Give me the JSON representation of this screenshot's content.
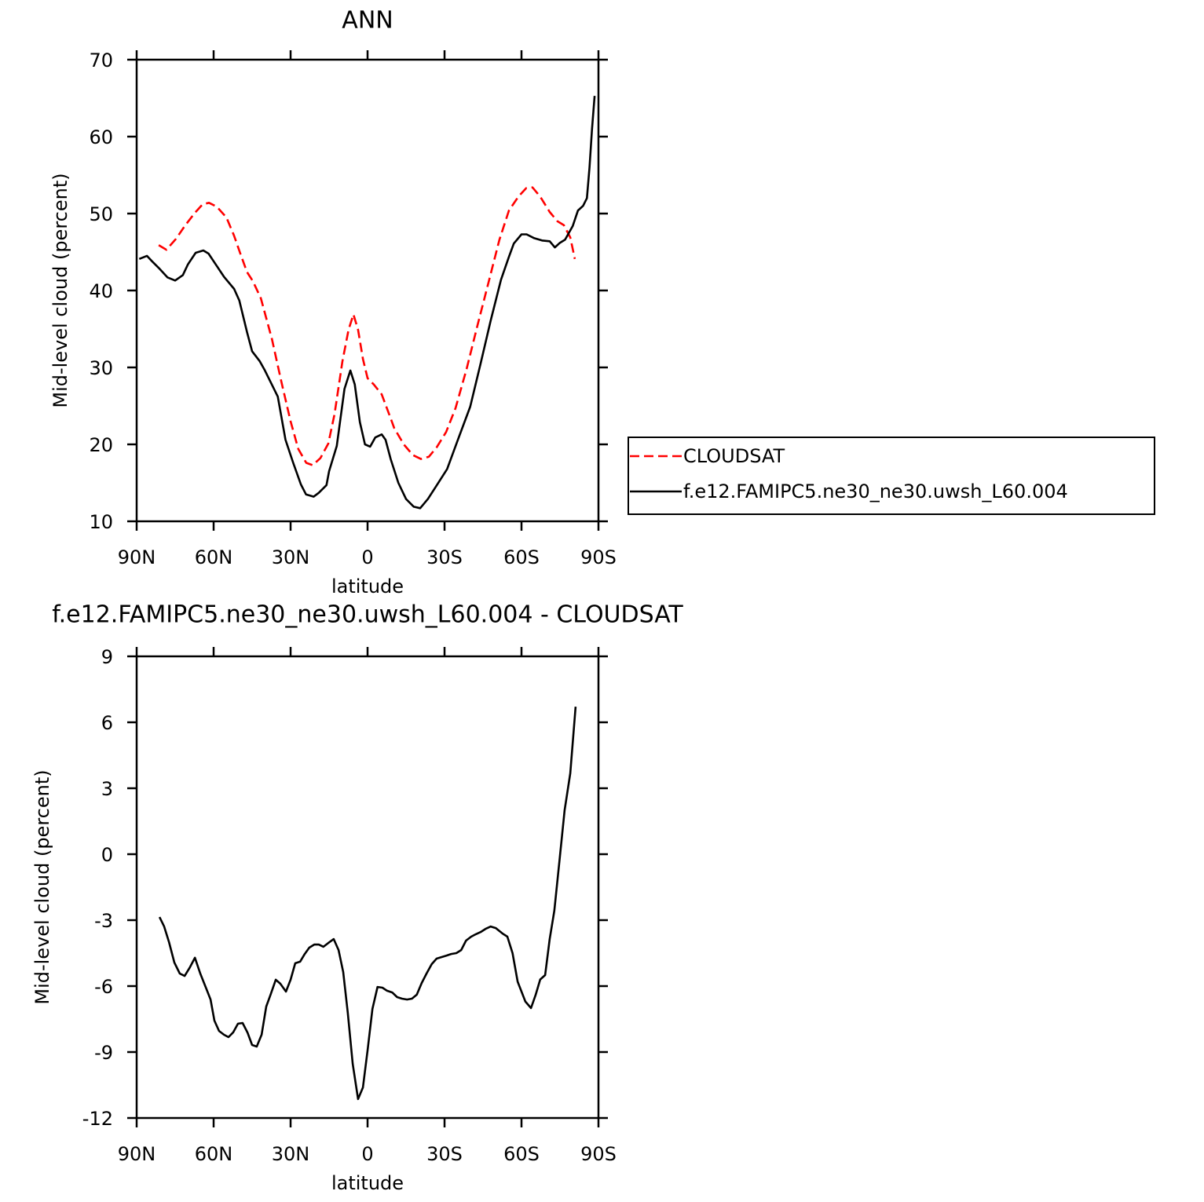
{
  "chart_data": [
    {
      "type": "line",
      "title": "ANN",
      "xlabel": "latitude",
      "ylabel": "Mid-level cloud (percent)",
      "xlim": [
        90,
        -90
      ],
      "xticks": [
        {
          "value": 90,
          "label": "90N"
        },
        {
          "value": 60,
          "label": "60N"
        },
        {
          "value": 30,
          "label": "30N"
        },
        0,
        {
          "value": -30,
          "label": "30S"
        },
        {
          "value": -60,
          "label": "60S"
        },
        {
          "value": -90,
          "label": "90S"
        }
      ],
      "ylim": [
        10,
        70
      ],
      "yticks": [
        10,
        20,
        30,
        40,
        50,
        60,
        70
      ],
      "legend": "outside right",
      "series": [
        {
          "name": "CLOUDSAT",
          "color": "#ff0000",
          "style": "dashed",
          "x": [
            81.4,
            78.4,
            74.7,
            71,
            67.3,
            64.3,
            61.8,
            58.8,
            55,
            52,
            49.6,
            47,
            44.7,
            41.6,
            37.3,
            33.7,
            30,
            27,
            23.9,
            21.4,
            18.4,
            15.3,
            12.9,
            9.8,
            7.4,
            5.5,
            3.7,
            1.8,
            0,
            -2.4,
            -5.5,
            -8,
            -10.4,
            -14.1,
            -17.7,
            -20.8,
            -23.9,
            -26.9,
            -30.6,
            -34.3,
            -38.6,
            -42.8,
            -47.1,
            -51.4,
            -55.1,
            -58.8,
            -61.8,
            -64.3,
            -67.3,
            -71,
            -74,
            -76.5,
            -79,
            -80.8
          ],
          "values": [
            45.9,
            45.3,
            46.7,
            48.5,
            50.1,
            51.2,
            51.4,
            50.9,
            49.5,
            47.1,
            44.8,
            42.4,
            41.2,
            39.0,
            33.7,
            28.3,
            23.0,
            19.4,
            17.6,
            17.3,
            18.2,
            20.1,
            23.9,
            30.8,
            34.9,
            36.9,
            34.9,
            31.1,
            28.6,
            27.8,
            26.5,
            24.3,
            22.1,
            20.0,
            18.6,
            18.1,
            18.4,
            19.6,
            21.6,
            24.7,
            29.8,
            35.4,
            41.0,
            46.6,
            50.4,
            52.2,
            53.3,
            53.4,
            52.2,
            50.2,
            49.0,
            48.5,
            46.9,
            44.1
          ]
        },
        {
          "name": "f.e12.FAMIPC5.ne30_ne30.uwsh_L60.004",
          "color": "#000000",
          "style": "solid",
          "x": [
            89,
            86,
            84,
            81,
            78,
            75,
            72,
            70,
            67,
            64,
            62,
            59,
            56,
            52,
            50,
            47,
            45,
            42,
            40,
            35,
            32,
            29,
            26,
            24,
            21,
            19,
            16,
            15,
            12,
            9,
            6.7,
            5,
            3,
            1,
            -1,
            -3,
            -5.5,
            -7,
            -9,
            -12,
            -15,
            -18,
            -20.5,
            -23.5,
            -27,
            -31,
            -35,
            -40,
            -44,
            -48,
            -52,
            -55,
            -57,
            -60,
            -62,
            -65,
            -68,
            -71,
            -73,
            -75,
            -77,
            -80,
            -82,
            -84,
            -85.5,
            -86.5,
            -87.5,
            -88.5
          ],
          "values": [
            44.1,
            44.5,
            43.8,
            42.8,
            41.7,
            41.3,
            42.0,
            43.4,
            44.9,
            45.2,
            44.8,
            43.3,
            41.8,
            40.2,
            38.7,
            34.6,
            32.1,
            30.8,
            29.6,
            26.2,
            20.6,
            17.6,
            14.8,
            13.5,
            13.2,
            13.7,
            14.7,
            16.5,
            19.8,
            27.2,
            29.6,
            27.8,
            22.9,
            20.0,
            19.7,
            20.9,
            21.3,
            20.6,
            18.1,
            15.0,
            12.9,
            11.9,
            11.7,
            12.9,
            14.7,
            16.8,
            20.4,
            24.9,
            30.4,
            36.1,
            41.4,
            44.3,
            46.1,
            47.3,
            47.3,
            46.8,
            46.5,
            46.4,
            45.6,
            46.2,
            46.6,
            48.4,
            50.4,
            51.0,
            52.0,
            56.0,
            61.0,
            65.3
          ]
        }
      ]
    },
    {
      "type": "line",
      "title": "f.e12.FAMIPC5.ne30_ne30.uwsh_L60.004 - CLOUDSAT",
      "xlabel": "latitude",
      "ylabel": "Mid-level cloud (percent)",
      "xlim": [
        90,
        -90
      ],
      "xticks": [
        {
          "value": 90,
          "label": "90N"
        },
        {
          "value": 60,
          "label": "60N"
        },
        {
          "value": 30,
          "label": "30N"
        },
        0,
        {
          "value": -30,
          "label": "30S"
        },
        {
          "value": -60,
          "label": "60S"
        },
        {
          "value": -90,
          "label": "90S"
        }
      ],
      "ylim": [
        -12,
        9
      ],
      "yticks": [
        -12,
        -9,
        -6,
        -3,
        0,
        3,
        6,
        9
      ],
      "series": [
        {
          "color": "#000000",
          "style": "solid",
          "x": [
            81.1,
            79.3,
            77.4,
            75.3,
            73.2,
            71.3,
            69.2,
            67.3,
            65.2,
            62.8,
            61.2,
            59.7,
            57.9,
            56.0,
            54.2,
            52.4,
            50.5,
            48.7,
            46.8,
            45.0,
            43.2,
            41.3,
            39.5,
            37.7,
            35.8,
            34.0,
            31.8,
            30.0,
            28.2,
            26.3,
            24.5,
            22.7,
            20.8,
            19.0,
            17.2,
            15.3,
            13.2,
            11.3,
            9.5,
            7.7,
            5.8,
            3.7,
            1.8,
            0,
            -1.9,
            -3.9,
            -5.8,
            -7.6,
            -9.6,
            -11.5,
            -13.4,
            -15.4,
            -17.3,
            -19.2,
            -21.1,
            -23.0,
            -25.0,
            -26.9,
            -28.9,
            -30.8,
            -32.6,
            -34.6,
            -36.5,
            -38.4,
            -40.4,
            -42.2,
            -44.1,
            -46.1,
            -48.0,
            -50.0,
            -52.5,
            -54.5,
            -56.5,
            -58.5,
            -61.5,
            -63.7,
            -65.5,
            -67.3,
            -69.2,
            -71,
            -72.8,
            -75,
            -76.8,
            -79,
            -81.1
          ],
          "values": [
            -2.86,
            -3.29,
            -4.0,
            -4.93,
            -5.43,
            -5.54,
            -5.14,
            -4.71,
            -5.43,
            -6.14,
            -6.61,
            -7.57,
            -8.04,
            -8.21,
            -8.32,
            -8.11,
            -7.71,
            -7.68,
            -8.11,
            -8.68,
            -8.75,
            -8.21,
            -6.93,
            -6.36,
            -5.71,
            -5.89,
            -6.25,
            -5.71,
            -4.96,
            -4.89,
            -4.54,
            -4.25,
            -4.11,
            -4.11,
            -4.21,
            -4.04,
            -3.86,
            -4.36,
            -5.36,
            -7.21,
            -9.54,
            -11.14,
            -10.61,
            -8.93,
            -7.04,
            -6.04,
            -6.07,
            -6.21,
            -6.29,
            -6.5,
            -6.57,
            -6.61,
            -6.57,
            -6.39,
            -5.86,
            -5.43,
            -5.0,
            -4.75,
            -4.68,
            -4.61,
            -4.54,
            -4.5,
            -4.36,
            -3.93,
            -3.75,
            -3.64,
            -3.54,
            -3.39,
            -3.29,
            -3.36,
            -3.6,
            -3.75,
            -4.5,
            -5.8,
            -6.7,
            -7.0,
            -6.4,
            -5.7,
            -5.5,
            -3.86,
            -2.57,
            -0.07,
            2.0,
            3.68,
            6.71
          ]
        }
      ]
    }
  ]
}
